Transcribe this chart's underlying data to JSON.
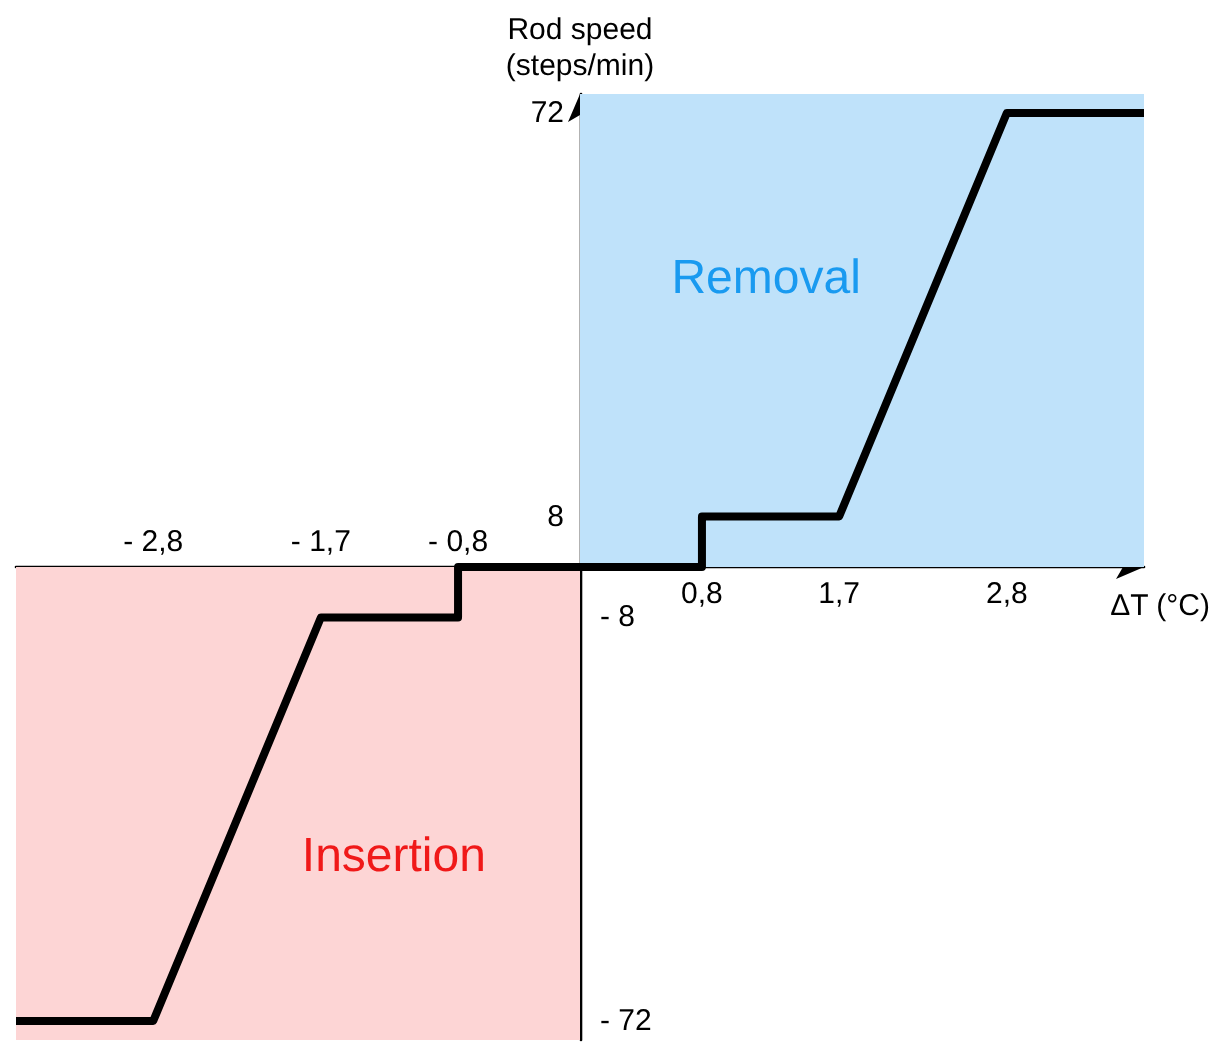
{
  "chart_data": {
    "type": "line",
    "xlabel": "ΔT (°C)",
    "ylabel": "Rod speed\n(steps/min)",
    "xlim": [
      -3.7,
      3.7
    ],
    "ylim": [
      -75,
      75
    ],
    "x2lim": [
      -3.7,
      3.7
    ],
    "y2lim": [
      -75,
      75
    ],
    "xticks": [
      {
        "value": 0.8,
        "label": "0,8"
      },
      {
        "value": 1.7,
        "label": "1,7"
      },
      {
        "value": 2.8,
        "label": "2,8"
      }
    ],
    "x2ticks": [
      {
        "value": -2.8,
        "label": "- 2,8"
      },
      {
        "value": -1.7,
        "label": "- 1,7"
      },
      {
        "value": -0.8,
        "label": "- 0,8"
      }
    ],
    "yticks": [
      72,
      8
    ],
    "y2ticks": [
      {
        "value": -8,
        "label": "- 8"
      },
      {
        "value": -72,
        "label": "- 72"
      }
    ],
    "bands": [
      {
        "axis": "y",
        "from": 0,
        "to": 75,
        "label": "Removal",
        "color": "#bfe2fa"
      },
      {
        "axis": "y",
        "from": -75,
        "to": 0,
        "label": "Insertion",
        "color": "#fdd5d5"
      }
    ],
    "series": [
      {
        "color": "#000000",
        "x": [
          -3.7,
          -2.8,
          -1.7,
          -0.8,
          -0.8,
          0.8,
          0.8,
          1.7,
          2.8,
          3.7
        ],
        "values": [
          -72,
          -72,
          -8,
          -8,
          0,
          0,
          8,
          8,
          72,
          72
        ]
      }
    ],
    "marker": "none",
    "line_style": "solid",
    "grid": false
  }
}
